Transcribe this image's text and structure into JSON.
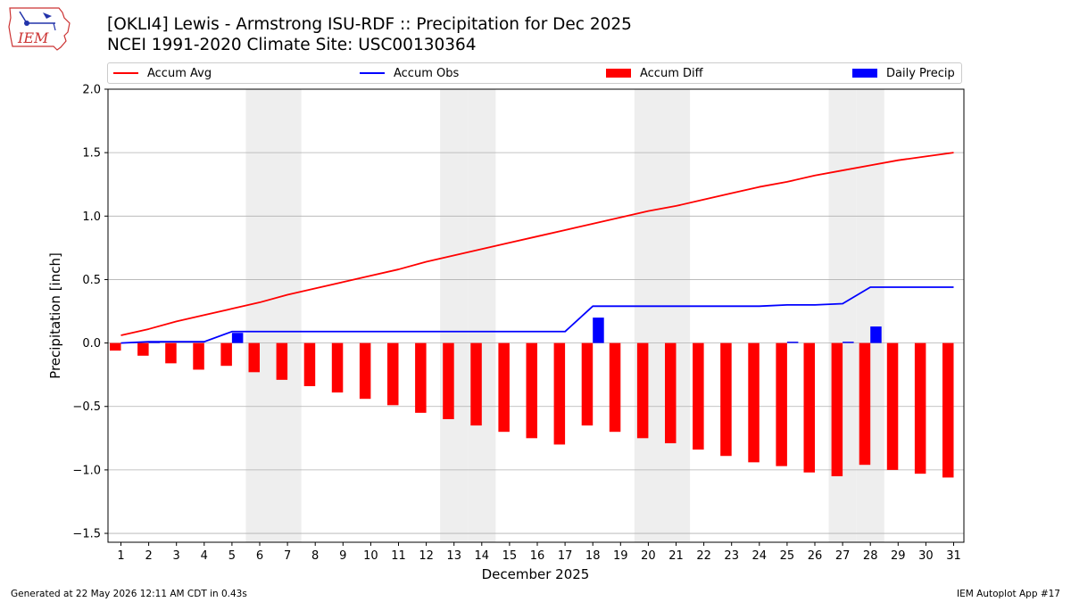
{
  "title_line1": "[OKLI4] Lewis - Armstrong ISU-RDF :: Precipitation for Dec 2025",
  "title_line2": "NCEI 1991-2020 Climate Site: USC00130364",
  "logo_text": "IEM",
  "footer_left": "Generated at 22 May 2026 12:11 AM CDT in 0.43s",
  "footer_right": "IEM Autoplot App #17",
  "colors": {
    "accum_avg": "#ff0000",
    "accum_obs": "#0000ff",
    "accum_diff": "#ff0000",
    "daily_precip": "#0000ff",
    "weekend_shade": "#eeeeee",
    "grid": "#b0b0b0"
  },
  "chart_data": {
    "type": "bar",
    "xlabel": "December 2025",
    "ylabel": "Precipitation [inch]",
    "ylim": [
      -1.57,
      2.0
    ],
    "yticks": [
      -1.5,
      -1.0,
      -0.5,
      0.0,
      0.5,
      1.0,
      1.5,
      2.0
    ],
    "ytick_labels": [
      "−1.5",
      "−1.0",
      "−0.5",
      "0.0",
      "0.5",
      "1.0",
      "1.5",
      "2.0"
    ],
    "grid": "horizontal",
    "legend_position": "top",
    "days": [
      1,
      2,
      3,
      4,
      5,
      6,
      7,
      8,
      9,
      10,
      11,
      12,
      13,
      14,
      15,
      16,
      17,
      18,
      19,
      20,
      21,
      22,
      23,
      24,
      25,
      26,
      27,
      28,
      29,
      30,
      31
    ],
    "weekend_days": [
      6,
      7,
      13,
      14,
      20,
      21,
      27,
      28
    ],
    "series": [
      {
        "name": "Accum Avg",
        "kind": "line",
        "values": [
          0.06,
          0.11,
          0.17,
          0.22,
          0.27,
          0.32,
          0.38,
          0.43,
          0.48,
          0.53,
          0.58,
          0.64,
          0.69,
          0.74,
          0.79,
          0.84,
          0.89,
          0.94,
          0.99,
          1.04,
          1.08,
          1.13,
          1.18,
          1.23,
          1.27,
          1.32,
          1.36,
          1.4,
          1.44,
          1.47,
          1.5
        ]
      },
      {
        "name": "Accum Obs",
        "kind": "line",
        "values": [
          0.0,
          0.01,
          0.01,
          0.01,
          0.09,
          0.09,
          0.09,
          0.09,
          0.09,
          0.09,
          0.09,
          0.09,
          0.09,
          0.09,
          0.09,
          0.09,
          0.09,
          0.29,
          0.29,
          0.29,
          0.29,
          0.29,
          0.29,
          0.29,
          0.3,
          0.3,
          0.31,
          0.44,
          0.44,
          0.44,
          0.44
        ]
      },
      {
        "name": "Accum Diff",
        "kind": "bar",
        "values": [
          -0.06,
          -0.1,
          -0.16,
          -0.21,
          -0.18,
          -0.23,
          -0.29,
          -0.34,
          -0.39,
          -0.44,
          -0.49,
          -0.55,
          -0.6,
          -0.65,
          -0.7,
          -0.75,
          -0.8,
          -0.65,
          -0.7,
          -0.75,
          -0.79,
          -0.84,
          -0.89,
          -0.94,
          -0.97,
          -1.02,
          -1.05,
          -0.96,
          -1.0,
          -1.03,
          -1.06
        ]
      },
      {
        "name": "Daily Precip",
        "kind": "bar",
        "values": [
          0.0,
          0.01,
          0.0,
          0.0,
          0.08,
          0.0,
          0.0,
          0.0,
          0.0,
          0.0,
          0.0,
          0.0,
          0.0,
          0.0,
          0.0,
          0.0,
          0.0,
          0.2,
          0.0,
          0.0,
          0.0,
          0.0,
          0.0,
          0.0,
          0.01,
          0.0,
          0.01,
          0.13,
          0.0,
          0.0,
          0.0
        ]
      }
    ]
  }
}
